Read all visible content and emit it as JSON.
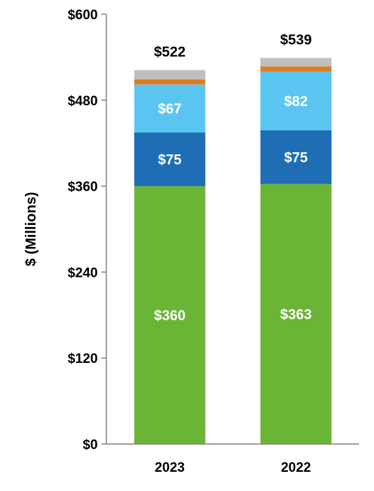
{
  "chart_data": {
    "type": "bar",
    "stacked": true,
    "title": "",
    "xlabel": "",
    "ylabel": "$ (Millions)",
    "ylim": [
      0,
      600
    ],
    "yticks": [
      "$0",
      "$120",
      "$240",
      "$360",
      "$480",
      "$600"
    ],
    "yticks_values": [
      0,
      120,
      240,
      360,
      480,
      600
    ],
    "categories": [
      "2023",
      "2022"
    ],
    "totals": [
      522,
      539
    ],
    "total_labels": [
      "$522",
      "$539"
    ],
    "grid": false,
    "legend": "none",
    "series": [
      {
        "values": [
          360,
          363
        ],
        "labels": [
          "$360",
          "$363"
        ],
        "color": "#6bb536"
      },
      {
        "values": [
          75,
          75
        ],
        "labels": [
          "$75",
          "$75"
        ],
        "color": "#1f6db5"
      },
      {
        "values": [
          67,
          82
        ],
        "labels": [
          "$67",
          "$82"
        ],
        "color": "#5bc5f2"
      },
      {
        "values": [
          7,
          7
        ],
        "labels": [
          "",
          ""
        ],
        "color": "#e07b1f"
      },
      {
        "values": [
          13,
          12
        ],
        "labels": [
          "",
          ""
        ],
        "color": "#bfbfbf"
      }
    ]
  }
}
